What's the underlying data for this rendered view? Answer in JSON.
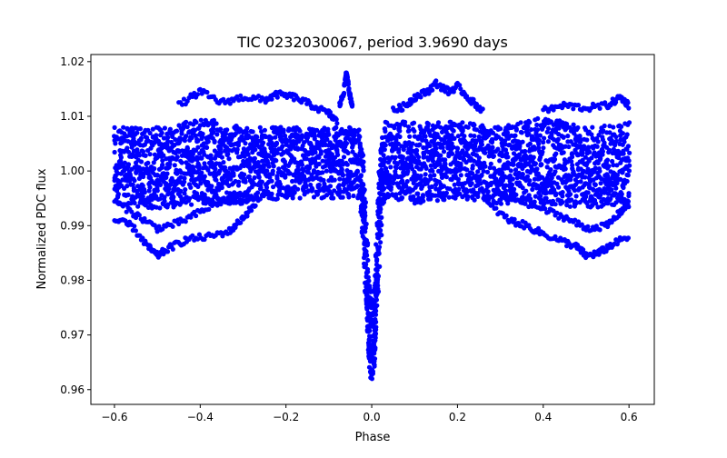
{
  "chart_data": {
    "type": "scatter",
    "title": "TIC 0232030067, period 3.9690 days",
    "xlabel": "Phase",
    "ylabel": "Normalized PDC flux",
    "xlim": [
      -0.655,
      0.659
    ],
    "ylim": [
      0.9573,
      1.0213
    ],
    "xticks": [
      -0.6,
      -0.4,
      -0.2,
      0.0,
      0.2,
      0.4,
      0.6
    ],
    "xtick_labels": [
      "−0.6",
      "−0.4",
      "−0.2",
      "0.0",
      "0.2",
      "0.4",
      "0.6"
    ],
    "yticks": [
      0.96,
      0.97,
      0.98,
      0.99,
      1.0,
      1.01,
      1.02
    ],
    "ytick_labels": [
      "0.96",
      "0.97",
      "0.98",
      "0.99",
      "1.00",
      "1.01",
      "1.02"
    ],
    "grid": false,
    "marker_color": "#0000ff",
    "dense_envelope": {
      "phase": [
        -0.6,
        -0.5,
        -0.4,
        -0.3,
        -0.2,
        -0.1,
        -0.03,
        -0.02,
        -0.012,
        -0.005,
        0.0,
        0.005,
        0.012,
        0.02,
        0.03,
        0.1,
        0.2,
        0.3,
        0.4,
        0.5,
        0.6
      ],
      "flux_min": [
        0.994,
        0.993,
        0.994,
        0.994,
        0.995,
        0.995,
        0.995,
        0.986,
        0.972,
        0.964,
        0.961,
        0.964,
        0.972,
        0.986,
        0.995,
        0.994,
        0.995,
        0.994,
        0.994,
        0.993,
        0.994
      ],
      "flux_max": [
        1.008,
        1.008,
        1.01,
        1.008,
        1.008,
        1.008,
        1.008,
        1.003,
        0.99,
        0.979,
        0.977,
        0.979,
        0.99,
        1.005,
        1.009,
        1.009,
        1.009,
        1.008,
        1.01,
        1.008,
        1.009
      ]
    },
    "outlier_tracks": [
      {
        "x": [
          -0.6,
          -0.56,
          -0.52,
          -0.5,
          -0.47,
          -0.43,
          -0.38,
          -0.33,
          -0.3,
          -0.27
        ],
        "y": [
          0.991,
          0.99,
          0.986,
          0.9845,
          0.986,
          0.9875,
          0.988,
          0.989,
          0.9915,
          0.994
        ]
      },
      {
        "x": [
          -0.6,
          -0.55,
          -0.5,
          -0.45,
          -0.4,
          -0.35,
          -0.3,
          -0.25
        ],
        "y": [
          0.9945,
          0.992,
          0.9895,
          0.9905,
          0.9925,
          0.9945,
          0.995,
          0.9955
        ]
      },
      {
        "x": [
          -0.45,
          -0.4,
          -0.35,
          -0.3,
          -0.25,
          -0.22,
          -0.18,
          -0.14,
          -0.1,
          -0.08
        ],
        "y": [
          1.012,
          1.0145,
          1.0125,
          1.0135,
          1.013,
          1.014,
          1.0135,
          1.012,
          1.0105,
          1.009
        ]
      },
      {
        "x": [
          -0.075,
          -0.065,
          -0.06,
          -0.055,
          -0.05,
          -0.045
        ],
        "y": [
          1.012,
          1.0145,
          1.018,
          1.016,
          1.0135,
          1.012
        ]
      },
      {
        "x": [
          0.05,
          0.08,
          0.1,
          0.13,
          0.15,
          0.18,
          0.2,
          0.23,
          0.26
        ],
        "y": [
          1.011,
          1.012,
          1.0135,
          1.0145,
          1.016,
          1.0145,
          1.0155,
          1.013,
          1.011
        ]
      },
      {
        "x": [
          0.27,
          0.32,
          0.36,
          0.4,
          0.45,
          0.48,
          0.5,
          0.53,
          0.56,
          0.6
        ],
        "y": [
          0.994,
          0.991,
          0.99,
          0.9885,
          0.987,
          0.986,
          0.9845,
          0.985,
          0.9865,
          0.988
        ]
      },
      {
        "x": [
          0.3,
          0.35,
          0.4,
          0.45,
          0.5,
          0.55,
          0.58,
          0.6
        ],
        "y": [
          0.9955,
          0.9945,
          0.993,
          0.9915,
          0.9895,
          0.99,
          0.9925,
          0.994
        ]
      },
      {
        "x": [
          0.4,
          0.45,
          0.5,
          0.55,
          0.58,
          0.6
        ],
        "y": [
          1.011,
          1.012,
          1.0115,
          1.012,
          1.0135,
          1.012
        ]
      }
    ]
  }
}
